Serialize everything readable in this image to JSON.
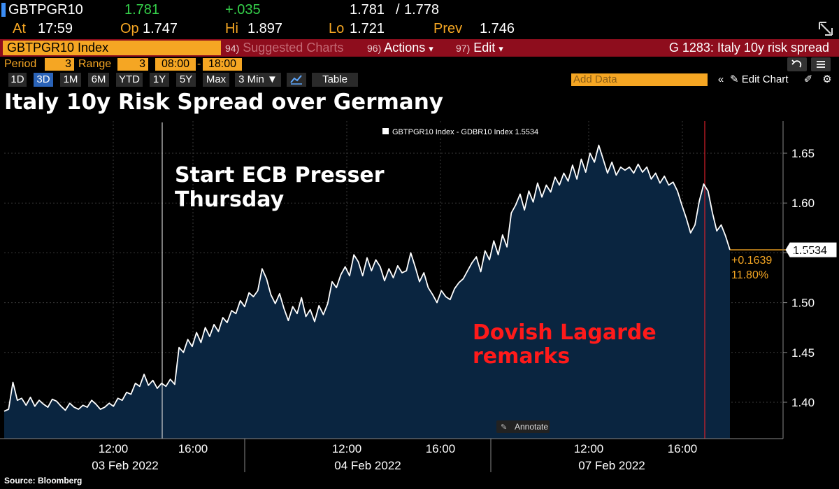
{
  "header": {
    "ticker": "GBTPGR10",
    "last": "1.781",
    "change": "+.035",
    "bid_ask_bid": "1.781",
    "bid_ask_sep": "/",
    "bid_ask_ask": "1.778",
    "at_label": "At",
    "at_time": "17:59",
    "open_label": "Op",
    "open_val": "1.747",
    "high_label": "Hi",
    "high_val": "1.897",
    "low_label": "Lo",
    "low_val": "1.721",
    "prev_label": "Prev",
    "prev_val": "1.746"
  },
  "toolbar": {
    "security": "GBTPGR10 Index",
    "suggested_num": "94)",
    "suggested_label": "Suggested Charts",
    "actions_num": "96)",
    "actions_label": "Actions",
    "edit_num": "97)",
    "edit_label": "Edit",
    "dropdown_glyph": "▾",
    "chart_id": "G 1283: Italy 10y risk spread"
  },
  "period_row": {
    "period_label": "Period",
    "period_val": "3",
    "range_label": "Range",
    "range_val": "3",
    "start_time": "08:00",
    "dash": "-",
    "end_time": "18:00"
  },
  "range_buttons": [
    "1D",
    "3D",
    "1M",
    "6M",
    "YTD",
    "1Y",
    "5Y",
    "Max"
  ],
  "active_range": "3D",
  "interval": "3 Min ▼",
  "table_label": "Table",
  "add_data_placeholder": "Add Data",
  "edit_chart_label": "Edit Chart",
  "title": "Italy 10y Risk Spread over Germany",
  "source": "Source: Bloomberg",
  "chart_data": {
    "type": "line",
    "title": "Italy 10y Risk Spread over Germany",
    "series": [
      {
        "name": "GBTPGR10 Index - GDBR10 Index",
        "legend_label": "GBTPGR10 Index - GDBR10 Index 1.5534",
        "last_value": "1.5534",
        "change": "+0.1639",
        "change_pct": "11.80%",
        "values": [
          1.391,
          1.393,
          1.42,
          1.402,
          1.404,
          1.397,
          1.405,
          1.396,
          1.402,
          1.398,
          1.395,
          1.403,
          1.401,
          1.396,
          1.392,
          1.399,
          1.395,
          1.393,
          1.397,
          1.395,
          1.402,
          1.398,
          1.393,
          1.395,
          1.399,
          1.396,
          1.404,
          1.402,
          1.41,
          1.408,
          1.419,
          1.416,
          1.428,
          1.417,
          1.422,
          1.414,
          1.419,
          1.416,
          1.423,
          1.418,
          1.455,
          1.45,
          1.463,
          1.456,
          1.47,
          1.46,
          1.475,
          1.466,
          1.478,
          1.471,
          1.485,
          1.48,
          1.492,
          1.489,
          1.502,
          1.496,
          1.51,
          1.506,
          1.512,
          1.534,
          1.524,
          1.508,
          1.499,
          1.509,
          1.494,
          1.482,
          1.496,
          1.489,
          1.505,
          1.486,
          1.493,
          1.481,
          1.497,
          1.488,
          1.499,
          1.521,
          1.515,
          1.528,
          1.536,
          1.527,
          1.548,
          1.541,
          1.527,
          1.545,
          1.532,
          1.543,
          1.536,
          1.522,
          1.534,
          1.525,
          1.537,
          1.53,
          1.532,
          1.55,
          1.536,
          1.521,
          1.53,
          1.515,
          1.508,
          1.5,
          1.512,
          1.506,
          1.503,
          1.514,
          1.52,
          1.524,
          1.532,
          1.54,
          1.546,
          1.531,
          1.552,
          1.543,
          1.562,
          1.548,
          1.568,
          1.556,
          1.59,
          1.598,
          1.609,
          1.593,
          1.612,
          1.601,
          1.62,
          1.606,
          1.618,
          1.611,
          1.626,
          1.618,
          1.63,
          1.622,
          1.638,
          1.624,
          1.644,
          1.631,
          1.65,
          1.641,
          1.658,
          1.644,
          1.63,
          1.641,
          1.628,
          1.636,
          1.633,
          1.636,
          1.63,
          1.639,
          1.631,
          1.636,
          1.624,
          1.63,
          1.62,
          1.627,
          1.618,
          1.621,
          1.612,
          1.598,
          1.585,
          1.57,
          1.578,
          1.602,
          1.619,
          1.612,
          1.59,
          1.572,
          1.578,
          1.567,
          1.553
        ]
      }
    ],
    "x_tick_labels": [
      "12:00",
      "16:00",
      "12:00",
      "16:00",
      "12:00",
      "16:00"
    ],
    "x_date_labels": [
      "03 Feb 2022",
      "04 Feb 2022",
      "07 Feb 2022"
    ],
    "ylim": [
      1.365,
      1.685
    ],
    "yticks": [
      "1.40",
      "1.45",
      "1.50",
      "1.55",
      "1.60",
      "1.65"
    ],
    "annotations": [
      {
        "text_line1": "Start ECB Presser",
        "text_line2": "Thursday",
        "color": "#ffffff"
      },
      {
        "text_line1": "Dovish Lagarde",
        "text_line2": "remarks",
        "color": "#ff1a1a"
      }
    ],
    "annotate_button": "Annotate",
    "line_color": "#ffffff",
    "fill_color": "#0a2540",
    "change_color": "#f5a623"
  }
}
